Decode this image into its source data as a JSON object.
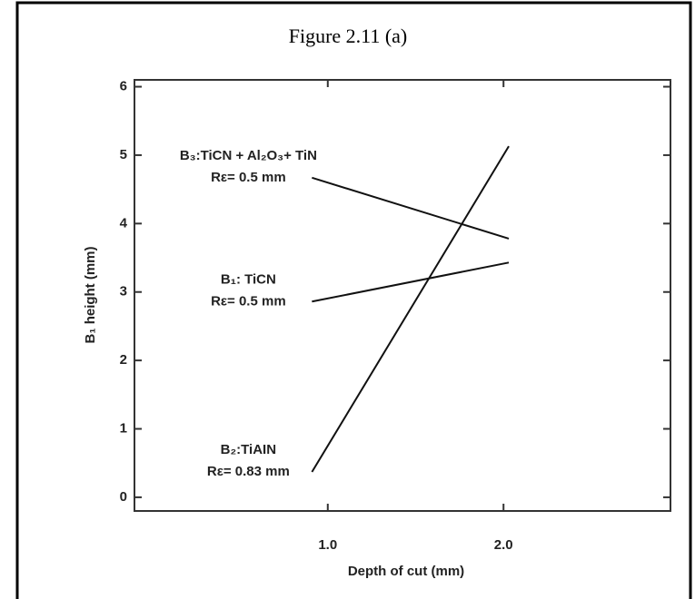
{
  "chart_data": {
    "type": "line",
    "title": "Figure 2.11 (a)",
    "x_label": "Depth of cut (mm)",
    "y_label": "B₁ height (mm)",
    "xlim": [
      -0.1,
      2.95
    ],
    "ylim": [
      -0.2,
      6.1
    ],
    "xticks": [
      {
        "value": 1,
        "label": "1.0"
      },
      {
        "value": 2,
        "label": "2.0"
      }
    ],
    "yticks": [
      0,
      1,
      2,
      3,
      4,
      5,
      6
    ],
    "color": "#111111",
    "series": [
      {
        "name": "B₃:TiCN + Al₂O₃+ TiN",
        "sublabel": "Rε= 0.5 mm",
        "x": [
          0.91,
          2.03
        ],
        "values": [
          4.67,
          3.78
        ]
      },
      {
        "name": "B₁: TiCN",
        "sublabel": "Rε= 0.5 mm",
        "x": [
          0.91,
          2.03
        ],
        "values": [
          2.86,
          3.43
        ]
      },
      {
        "name": "B₂:TiAIN",
        "sublabel": "Rε= 0.83 mm",
        "x": [
          0.91,
          2.03
        ],
        "values": [
          0.37,
          5.13
        ]
      }
    ]
  }
}
